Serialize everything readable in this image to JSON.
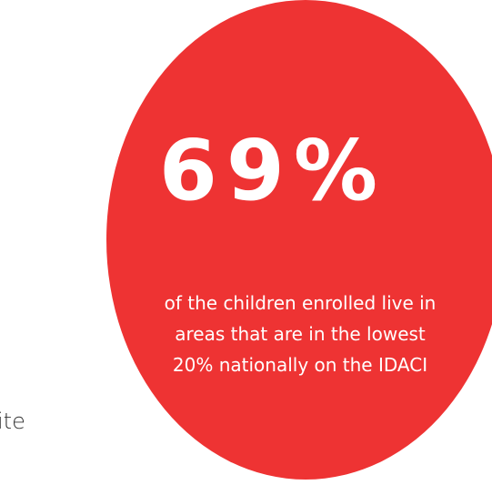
{
  "stat": {
    "value": "69%",
    "caption_lines": [
      "of the children enrolled live in",
      "areas that are in the lowest",
      "20% nationally on the IDACI"
    ]
  },
  "side_text": "ite",
  "colors": {
    "circle": "#ee3333",
    "text_on_circle": "#ffffff",
    "side_text": "#333333"
  }
}
